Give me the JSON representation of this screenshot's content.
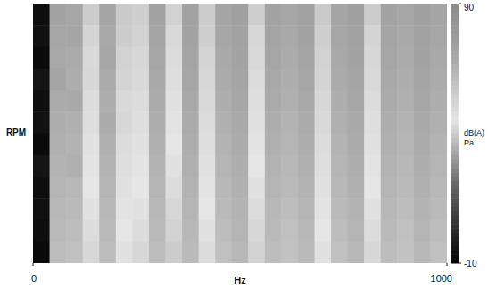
{
  "chart_data": {
    "type": "heatmap",
    "x_label": "Hz",
    "y_label": "RPM",
    "xlim": [
      0,
      1000
    ],
    "xticks": [
      0,
      1000
    ],
    "tick_labels": "x",
    "cells": [
      [
        -6,
        72,
        70,
        55,
        71,
        56,
        54,
        72,
        53,
        73,
        55,
        71,
        74,
        54,
        72,
        70,
        73,
        56,
        71,
        74,
        55,
        72,
        70,
        74,
        71
      ],
      [
        -5,
        70,
        71,
        52,
        69,
        55,
        53,
        71,
        50,
        72,
        54,
        70,
        73,
        51,
        71,
        69,
        72,
        54,
        70,
        73,
        52,
        71,
        69,
        73,
        70
      ],
      [
        -7,
        69,
        68,
        50,
        70,
        53,
        51,
        70,
        49,
        71,
        52,
        69,
        72,
        50,
        70,
        68,
        71,
        53,
        69,
        72,
        51,
        70,
        68,
        72,
        69
      ],
      [
        -4,
        71,
        67,
        51,
        68,
        52,
        50,
        69,
        48,
        70,
        51,
        68,
        71,
        49,
        69,
        67,
        70,
        52,
        68,
        71,
        50,
        69,
        67,
        71,
        68
      ],
      [
        -6,
        68,
        69,
        49,
        67,
        50,
        49,
        68,
        47,
        69,
        50,
        67,
        70,
        48,
        68,
        66,
        69,
        51,
        67,
        70,
        49,
        68,
        66,
        70,
        67
      ],
      [
        -5,
        67,
        66,
        48,
        68,
        51,
        48,
        67,
        46,
        68,
        49,
        66,
        69,
        47,
        67,
        65,
        68,
        50,
        66,
        69,
        48,
        67,
        65,
        69,
        66
      ],
      [
        -7,
        66,
        65,
        47,
        66,
        49,
        47,
        66,
        45,
        67,
        48,
        65,
        68,
        46,
        66,
        64,
        67,
        49,
        65,
        68,
        47,
        66,
        64,
        68,
        65
      ],
      [
        -4,
        65,
        66,
        46,
        65,
        48,
        46,
        65,
        44,
        66,
        47,
        64,
        67,
        45,
        65,
        63,
        66,
        48,
        64,
        67,
        46,
        65,
        63,
        67,
        64
      ],
      [
        -6,
        64,
        63,
        45,
        64,
        47,
        45,
        64,
        43,
        65,
        46,
        63,
        66,
        44,
        64,
        62,
        65,
        47,
        63,
        66,
        45,
        64,
        62,
        66,
        63
      ],
      [
        -5,
        63,
        62,
        44,
        63,
        46,
        44,
        63,
        42,
        64,
        45,
        62,
        65,
        43,
        63,
        61,
        64,
        46,
        62,
        65,
        44,
        63,
        61,
        65,
        62
      ],
      [
        -6,
        62,
        61,
        43,
        62,
        45,
        43,
        62,
        41,
        63,
        44,
        61,
        64,
        42,
        62,
        60,
        63,
        45,
        61,
        64,
        43,
        62,
        60,
        64,
        61
      ],
      [
        -7,
        61,
        60,
        42,
        61,
        44,
        42,
        61,
        40,
        62,
        43,
        60,
        63,
        41,
        61,
        59,
        62,
        44,
        60,
        63,
        42,
        61,
        59,
        63,
        60
      ]
    ],
    "colorbar": {
      "label": [
        "dB(A)",
        "Pa"
      ],
      "range": [
        -10,
        90
      ],
      "ticks": [
        -10,
        90
      ]
    }
  }
}
